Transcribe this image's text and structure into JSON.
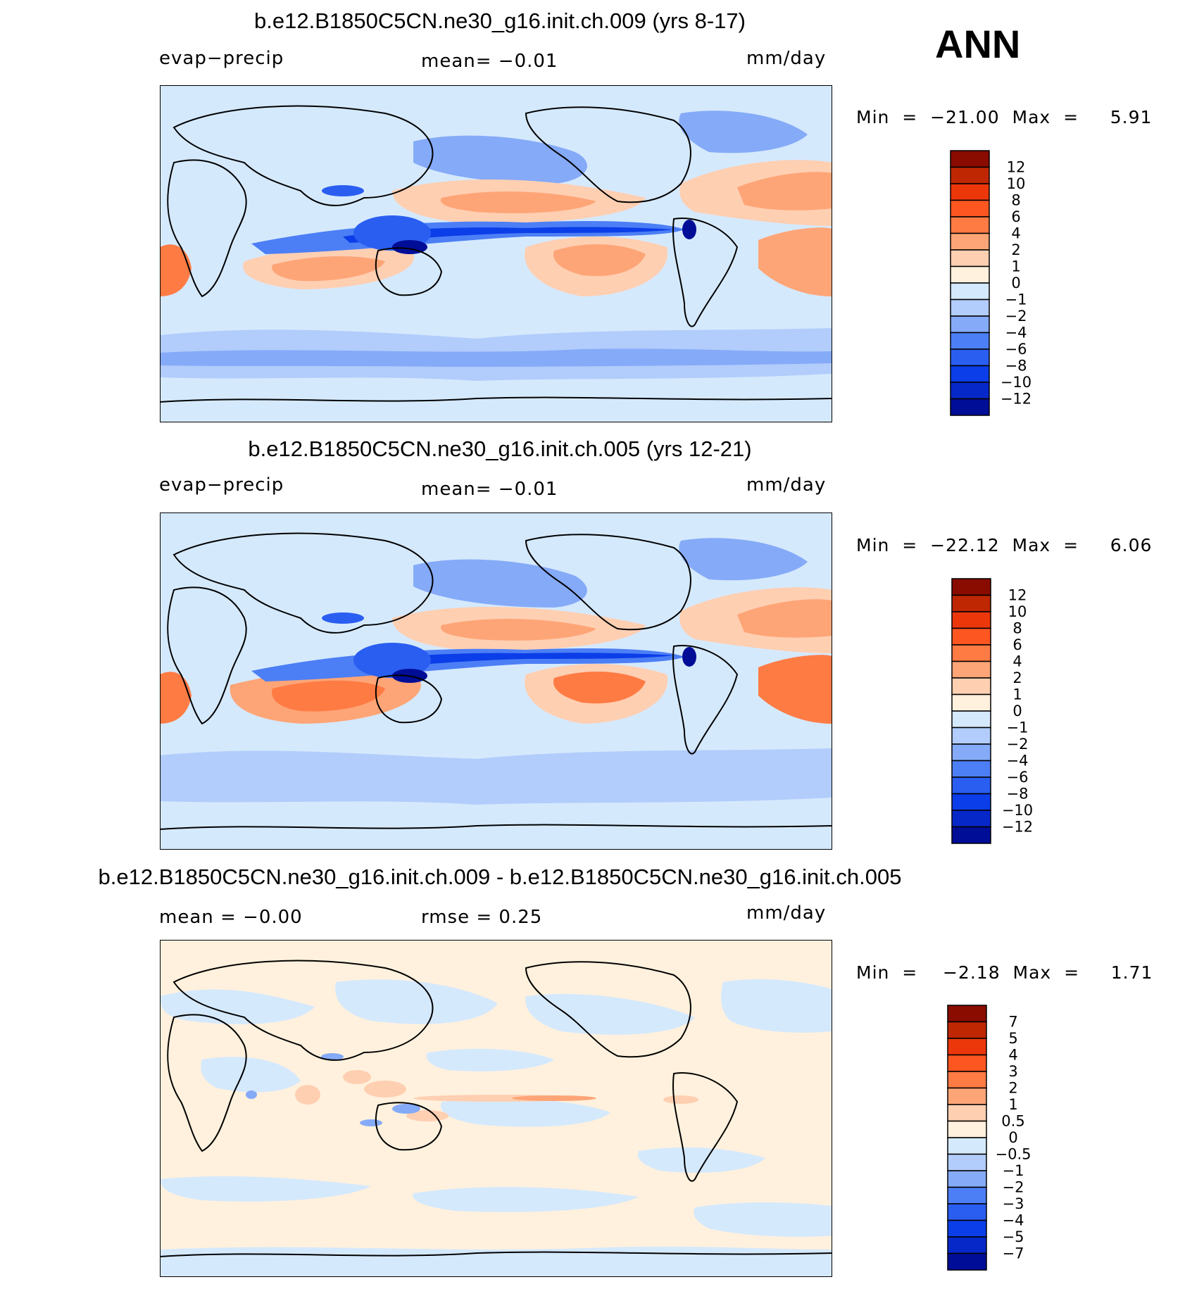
{
  "season": "ANN",
  "colors": {
    "pos": [
      "#fff1dd",
      "#ffcfb2",
      "#fea577",
      "#ff7b44",
      "#fe5621",
      "#ec370a",
      "#bf2703",
      "#8a0b00"
    ],
    "neg": [
      "#d5e9fd",
      "#b2ccfb",
      "#85aaf8",
      "#4c7ff5",
      "#2a5ef1",
      "#0b3ee8",
      "#0628c9",
      "#000d97",
      "#00007a"
    ]
  },
  "panels": [
    {
      "id": "p1",
      "title": "b.e12.B1850C5CN.ne30_g16.init.ch.009 (yrs 8-17)",
      "left_label": "evap−precip",
      "center_label": "mean=   −0.01",
      "units": "mm/day",
      "minmax": "Min  =  −21.00  Max  =     5.91",
      "cbar_labels": [
        "12",
        "10",
        "8",
        "6",
        "4",
        "2",
        "1",
        "0",
        "−1",
        "−2",
        "−4",
        "−6",
        "−8",
        "−10",
        "−12"
      ]
    },
    {
      "id": "p2",
      "title": "b.e12.B1850C5CN.ne30_g16.init.ch.005 (yrs 12-21)",
      "left_label": "evap−precip",
      "center_label": "mean=   −0.01",
      "units": "mm/day",
      "minmax": "Min  =  −22.12  Max  =     6.06",
      "cbar_labels": [
        "12",
        "10",
        "8",
        "6",
        "4",
        "2",
        "1",
        "0",
        "−1",
        "−2",
        "−4",
        "−6",
        "−8",
        "−10",
        "−12"
      ]
    },
    {
      "id": "p3",
      "title": "b.e12.B1850C5CN.ne30_g16.init.ch.009 - b.e12.B1850C5CN.ne30_g16.init.ch.005",
      "left_label": "mean  =    −0.00",
      "center_label": "rmse  =     0.25",
      "units": "mm/day",
      "minmax": "Min  =    −2.18  Max  =     1.71",
      "cbar_labels": [
        "7",
        "5",
        "4",
        "3",
        "2",
        "1",
        "0.5",
        "0",
        "−0.5",
        "−1",
        "−2",
        "−3",
        "−4",
        "−5",
        "−7"
      ]
    }
  ],
  "chart_data": [
    {
      "type": "heatmap",
      "title": "b.e12.B1850C5CN.ne30_g16.init.ch.009 (yrs 8-17)",
      "variable": "evap−precip",
      "units": "mm/day",
      "mean": -0.01,
      "min": -21.0,
      "max": 5.91,
      "contour_levels": [
        -12,
        -10,
        -8,
        -6,
        -4,
        -2,
        -1,
        0,
        1,
        2,
        4,
        6,
        8,
        10,
        12
      ]
    },
    {
      "type": "heatmap",
      "title": "b.e12.B1850C5CN.ne30_g16.init.ch.005 (yrs 12-21)",
      "variable": "evap−precip",
      "units": "mm/day",
      "mean": -0.01,
      "min": -22.12,
      "max": 6.06,
      "contour_levels": [
        -12,
        -10,
        -8,
        -6,
        -4,
        -2,
        -1,
        0,
        1,
        2,
        4,
        6,
        8,
        10,
        12
      ]
    },
    {
      "type": "heatmap",
      "title": "b.e12.B1850C5CN.ne30_g16.init.ch.009 - b.e12.B1850C5CN.ne30_g16.init.ch.005",
      "units": "mm/day",
      "mean": -0.0,
      "rmse": 0.25,
      "min": -2.18,
      "max": 1.71,
      "contour_levels": [
        -7,
        -5,
        -4,
        -3,
        -2,
        -1,
        -0.5,
        0,
        0.5,
        1,
        2,
        3,
        4,
        5,
        7
      ]
    }
  ]
}
